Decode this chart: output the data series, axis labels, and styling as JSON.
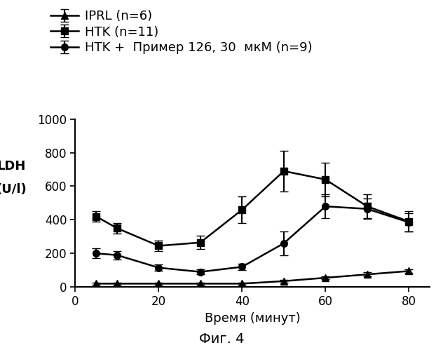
{
  "x": [
    5,
    10,
    20,
    30,
    40,
    50,
    60,
    70,
    80
  ],
  "iprl_y": [
    20,
    20,
    20,
    20,
    20,
    35,
    55,
    75,
    95
  ],
  "iprl_err": [
    5,
    5,
    5,
    5,
    5,
    8,
    10,
    12,
    12
  ],
  "htk_y": [
    420,
    350,
    245,
    265,
    460,
    690,
    640,
    480,
    390
  ],
  "htk_err": [
    30,
    30,
    30,
    40,
    80,
    120,
    100,
    70,
    60
  ],
  "htk126_y": [
    200,
    190,
    115,
    90,
    120,
    260,
    480,
    465,
    385
  ],
  "htk126_err": [
    30,
    25,
    20,
    15,
    20,
    70,
    70,
    60,
    55
  ],
  "xlabel": "Время (минут)",
  "ylabel_line1": "LDH",
  "ylabel_line2": "(U/l)",
  "ylim": [
    0,
    1000
  ],
  "xlim": [
    0,
    85
  ],
  "xticks": [
    0,
    20,
    40,
    60,
    80
  ],
  "yticks": [
    0,
    200,
    400,
    600,
    800,
    1000
  ],
  "legend_labels": [
    "IPRL (n=6)",
    "HTK (n=11)",
    "HTK +  Пример 126, 30  мкМ (n=9)"
  ],
  "caption": "Фиг. 4",
  "color": "#000000",
  "linewidth": 1.8,
  "markersize": 7,
  "capsize": 4,
  "elinewidth": 1.5,
  "fontsize_legend": 13,
  "fontsize_labels": 13,
  "fontsize_ticks": 12,
  "fontsize_caption": 14
}
